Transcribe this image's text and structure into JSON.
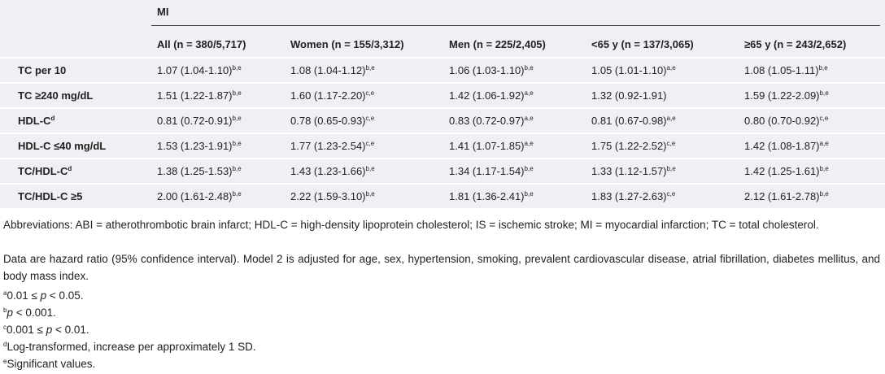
{
  "table": {
    "group_header": "MI",
    "columns": [
      "All (n = 380/5,717)",
      "Women (n = 155/3,312)",
      "Men (n = 225/2,405)",
      "<65 y (n = 137/3,065)",
      "≥65 y (n = 243/2,652)"
    ],
    "rows": [
      {
        "label": "TC per 10",
        "cells": [
          {
            "text": "1.07 (1.04-1.10)",
            "sup": "b,e"
          },
          {
            "text": "1.08 (1.04-1.12)",
            "sup": "b,e"
          },
          {
            "text": "1.06 (1.03-1.10)",
            "sup": "b,e"
          },
          {
            "text": "1.05 (1.01-1.10)",
            "sup": "a,e"
          },
          {
            "text": "1.08 (1.05-1.11)",
            "sup": "b,e"
          }
        ]
      },
      {
        "label": "TC ≥240 mg/dL",
        "cells": [
          {
            "text": "1.51 (1.22-1.87)",
            "sup": "b,e"
          },
          {
            "text": "1.60 (1.17-2.20)",
            "sup": "c,e"
          },
          {
            "text": "1.42 (1.06-1.92)",
            "sup": "a,e"
          },
          {
            "text": "1.32 (0.92-1.91)"
          },
          {
            "text": "1.59 (1.22-2.09)",
            "sup": "b,e"
          }
        ]
      },
      {
        "label": "HDL-C",
        "label_sup": "d",
        "cells": [
          {
            "text": "0.81 (0.72-0.91)",
            "sup": "b,e"
          },
          {
            "text": "0.78 (0.65-0.93)",
            "sup": "c,e"
          },
          {
            "text": "0.83 (0.72-0.97)",
            "sup": "a,e"
          },
          {
            "text": "0.81 (0.67-0.98)",
            "sup": "a,e"
          },
          {
            "text": "0.80 (0.70-0.92)",
            "sup": "c,e"
          }
        ]
      },
      {
        "label": "HDL-C ≤40 mg/dL",
        "cells": [
          {
            "text": "1.53 (1.23-1.91)",
            "sup": "b,e"
          },
          {
            "text": "1.77 (1.23-2.54)",
            "sup": "c,e"
          },
          {
            "text": "1.41 (1.07-1.85)",
            "sup": "a,e"
          },
          {
            "text": "1.75 (1.22-2.52)",
            "sup": "c,e"
          },
          {
            "text": "1.42 (1.08-1.87)",
            "sup": "a,e"
          }
        ]
      },
      {
        "label": "TC/HDL-C",
        "label_sup": "d",
        "cells": [
          {
            "text": "1.38 (1.25-1.53)",
            "sup": "b,e"
          },
          {
            "text": "1.43 (1.23-1.66)",
            "sup": "b,e"
          },
          {
            "text": "1.34 (1.17-1.54)",
            "sup": "b,e"
          },
          {
            "text": "1.33 (1.12-1.57)",
            "sup": "b,e"
          },
          {
            "text": "1.42 (1.25-1.61)",
            "sup": "b,e"
          }
        ]
      },
      {
        "label": "TC/HDL-C ≥5",
        "cells": [
          {
            "text": "2.00 (1.61-2.48)",
            "sup": "b,e"
          },
          {
            "text": "2.22 (1.59-3.10)",
            "sup": "b,e"
          },
          {
            "text": "1.81 (1.36-2.41)",
            "sup": "b,e"
          },
          {
            "text": "1.83 (1.27-2.63)",
            "sup": "c,e"
          },
          {
            "text": "2.12 (1.61-2.78)",
            "sup": "b,e"
          }
        ]
      }
    ]
  },
  "notes": {
    "abbreviations": "Abbreviations: ABI = atherothrombotic brain infarct; HDL-C = high-density lipoprotein cholesterol; IS = ischemic stroke; MI = myocardial infarction; TC = total cholesterol.",
    "data": "Data are hazard ratio (95% confidence interval). Model 2 is adjusted for age, sex, hypertension, smoking, prevalent cardiovascular disease, atrial fibrillation, diabetes mellitus, and body mass index.",
    "footnotes": [
      {
        "marker": "a",
        "parts": [
          {
            "text": "0.01 ≤ "
          },
          {
            "text": "p",
            "italic": true
          },
          {
            "text": " < 0.05."
          }
        ]
      },
      {
        "marker": "b",
        "parts": [
          {
            "text": "p",
            "italic": true
          },
          {
            "text": " < 0.001."
          }
        ]
      },
      {
        "marker": "c",
        "parts": [
          {
            "text": "0.001 ≤ "
          },
          {
            "text": "p",
            "italic": true
          },
          {
            "text": " < 0.01."
          }
        ]
      },
      {
        "marker": "d",
        "parts": [
          {
            "text": "Log-transformed, increase per approximately 1 SD."
          }
        ]
      },
      {
        "marker": "e",
        "parts": [
          {
            "text": "Significant values."
          }
        ]
      }
    ]
  }
}
